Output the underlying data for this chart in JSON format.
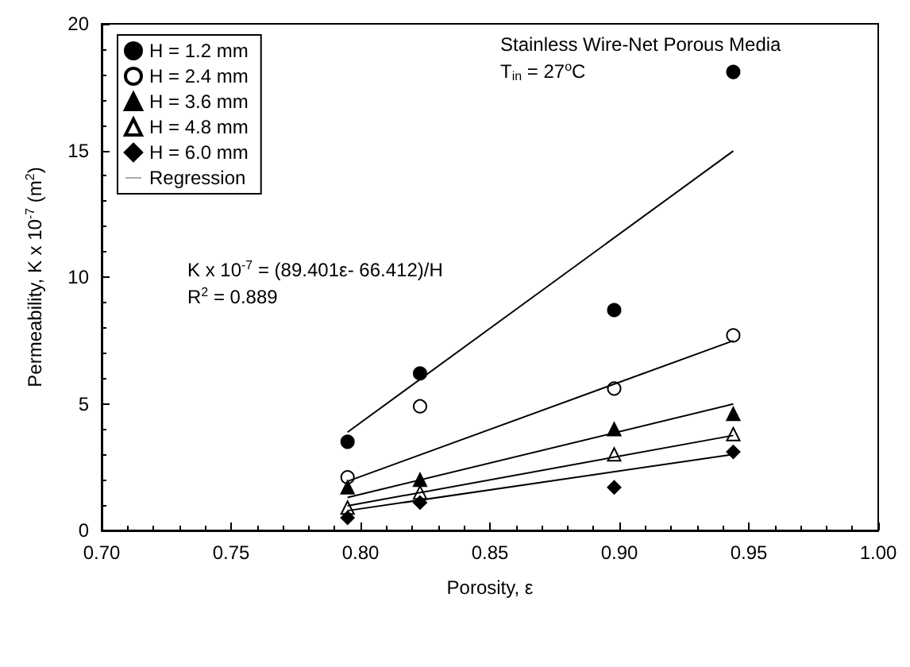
{
  "chart_data": {
    "type": "scatter",
    "xlabel": "Porosity, ε",
    "ylabel": "Permeability, K x 10$^{-7}$ (m$^{2}$)",
    "x": [
      0.795,
      0.823,
      0.898,
      0.944
    ],
    "series": [
      {
        "name": "H = 1.2 mm",
        "color": "#000000",
        "marker": "circle",
        "values": [
          3.5,
          6.2,
          8.7,
          18.1
        ]
      },
      {
        "name": "H = 2.4 mm",
        "color": "#ffffff",
        "marker": "circle",
        "values": [
          2.1,
          4.9,
          5.6,
          7.7
        ]
      },
      {
        "name": "H = 3.6 mm",
        "color": "#000000",
        "marker": "triangle",
        "values": [
          1.7,
          2.0,
          4.0,
          4.6
        ]
      },
      {
        "name": "H = 4.8 mm",
        "color": "#ffffff",
        "marker": "triangle",
        "values": [
          0.9,
          1.5,
          3.0,
          3.8
        ]
      },
      {
        "name": "H = 6.0 mm",
        "color": "#000000",
        "marker": "diamond",
        "values": [
          0.5,
          1.1,
          1.7,
          3.1
        ]
      },
      {
        "name": "Regression",
        "type": "line",
        "color": "#000000",
        "marker": "none",
        "values": [
          3.88,
          null,
          null,
          14.98
        ]
      },
      {
        "type": "line",
        "color": "#000000",
        "marker": "none",
        "values": [
          1.94,
          null,
          null,
          7.49
        ]
      },
      {
        "type": "line",
        "color": "#000000",
        "marker": "none",
        "values": [
          1.3,
          null,
          null,
          4.99
        ]
      },
      {
        "type": "line",
        "color": "#000000",
        "marker": "none",
        "values": [
          0.97,
          null,
          null,
          3.75
        ]
      },
      {
        "type": "line",
        "color": "#000000",
        "marker": "none",
        "values": [
          0.78,
          null,
          null,
          3.0
        ]
      }
    ],
    "annotations": [
      "Stainless Wire-Net Porous Media",
      "T$_{in}$ = 27$^{o}$C",
      "K x 10$^{-7}$ = (89.401ε- 66.412)/H",
      "R$^{2}$ = 0.889"
    ],
    "xlim": [
      0.7,
      1.0
    ],
    "xticks": [
      {
        "value": 0.7,
        "label": "0.70"
      },
      {
        "value": 0.75,
        "label": "0.75"
      },
      {
        "value": 0.8,
        "label": "0.80"
      },
      {
        "value": 0.85,
        "label": "0.85"
      },
      {
        "value": 0.9,
        "label": "0.90"
      },
      {
        "value": 0.95,
        "label": "0.95"
      },
      {
        "value": 1.0,
        "label": "1.00"
      }
    ],
    "ylim": [
      0,
      20
    ],
    "yticks": [
      0,
      5,
      10,
      15,
      20
    ],
    "grid": false,
    "legend": "top left",
    "line_style": "solid"
  }
}
